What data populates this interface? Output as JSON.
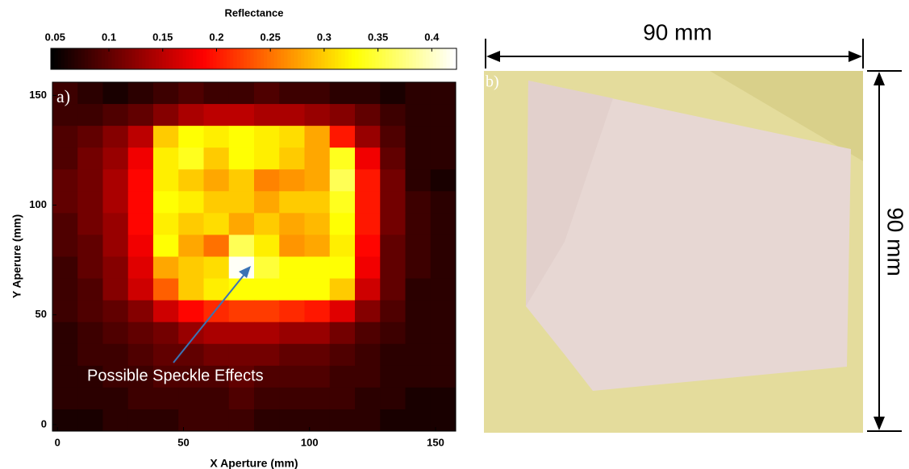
{
  "chart_data": {
    "type": "heatmap",
    "colormap": "hot",
    "xlabel": "X Aperture (mm)",
    "ylabel": "Y Aperure (mm)",
    "panel_label": "a)",
    "annotation": "Possible Speckle Effects",
    "xlim": [
      -2,
      158
    ],
    "ylim": [
      -3,
      156
    ],
    "xticks": [
      0,
      50,
      100,
      150
    ],
    "yticks": [
      0,
      50,
      100,
      150
    ],
    "colorbar": {
      "label": "Reflectance",
      "lim": [
        0.046,
        0.423
      ],
      "ticks": [
        0.05,
        0.1,
        0.15,
        0.2,
        0.25,
        0.3,
        0.35,
        0.4
      ]
    },
    "z": [
      [
        0.08,
        0.07,
        0.06,
        0.07,
        0.08,
        0.09,
        0.08,
        0.08,
        0.09,
        0.08,
        0.08,
        0.07,
        0.07,
        0.06,
        0.07,
        0.07
      ],
      [
        0.08,
        0.08,
        0.09,
        0.1,
        0.12,
        0.14,
        0.15,
        0.15,
        0.14,
        0.14,
        0.13,
        0.12,
        0.1,
        0.08,
        0.07,
        0.07
      ],
      [
        0.09,
        0.1,
        0.12,
        0.15,
        0.3,
        0.33,
        0.32,
        0.33,
        0.32,
        0.31,
        0.28,
        0.2,
        0.13,
        0.09,
        0.07,
        0.07
      ],
      [
        0.09,
        0.11,
        0.13,
        0.18,
        0.32,
        0.34,
        0.3,
        0.33,
        0.32,
        0.3,
        0.28,
        0.34,
        0.18,
        0.1,
        0.07,
        0.07
      ],
      [
        0.1,
        0.11,
        0.14,
        0.19,
        0.32,
        0.3,
        0.28,
        0.3,
        0.26,
        0.27,
        0.28,
        0.36,
        0.2,
        0.11,
        0.07,
        0.06
      ],
      [
        0.1,
        0.11,
        0.14,
        0.19,
        0.33,
        0.32,
        0.3,
        0.3,
        0.28,
        0.3,
        0.3,
        0.34,
        0.2,
        0.11,
        0.08,
        0.07
      ],
      [
        0.09,
        0.11,
        0.13,
        0.19,
        0.32,
        0.3,
        0.31,
        0.28,
        0.3,
        0.28,
        0.29,
        0.33,
        0.2,
        0.11,
        0.08,
        0.07
      ],
      [
        0.09,
        0.1,
        0.13,
        0.18,
        0.33,
        0.28,
        0.25,
        0.36,
        0.32,
        0.27,
        0.28,
        0.32,
        0.19,
        0.1,
        0.08,
        0.07
      ],
      [
        0.08,
        0.1,
        0.12,
        0.17,
        0.28,
        0.3,
        0.31,
        0.42,
        0.35,
        0.33,
        0.33,
        0.33,
        0.18,
        0.1,
        0.08,
        0.07
      ],
      [
        0.08,
        0.09,
        0.12,
        0.16,
        0.24,
        0.3,
        0.32,
        0.33,
        0.33,
        0.33,
        0.33,
        0.3,
        0.16,
        0.1,
        0.07,
        0.07
      ],
      [
        0.08,
        0.09,
        0.1,
        0.12,
        0.16,
        0.19,
        0.21,
        0.22,
        0.22,
        0.21,
        0.2,
        0.17,
        0.12,
        0.09,
        0.07,
        0.07
      ],
      [
        0.07,
        0.08,
        0.09,
        0.1,
        0.11,
        0.13,
        0.14,
        0.14,
        0.14,
        0.13,
        0.13,
        0.11,
        0.09,
        0.08,
        0.07,
        0.07
      ],
      [
        0.07,
        0.08,
        0.08,
        0.09,
        0.1,
        0.1,
        0.11,
        0.11,
        0.11,
        0.1,
        0.1,
        0.09,
        0.08,
        0.07,
        0.07,
        0.07
      ],
      [
        0.07,
        0.07,
        0.08,
        0.08,
        0.09,
        0.09,
        0.09,
        0.1,
        0.09,
        0.09,
        0.09,
        0.08,
        0.08,
        0.07,
        0.07,
        0.07
      ],
      [
        0.07,
        0.07,
        0.07,
        0.08,
        0.08,
        0.08,
        0.08,
        0.09,
        0.08,
        0.08,
        0.08,
        0.08,
        0.07,
        0.07,
        0.06,
        0.06
      ],
      [
        0.06,
        0.06,
        0.07,
        0.07,
        0.07,
        0.08,
        0.08,
        0.08,
        0.07,
        0.07,
        0.07,
        0.07,
        0.07,
        0.06,
        0.06,
        0.06
      ]
    ]
  },
  "photo": {
    "panel_label": "b)",
    "width_label": "90 mm",
    "height_label": "90 mm"
  }
}
